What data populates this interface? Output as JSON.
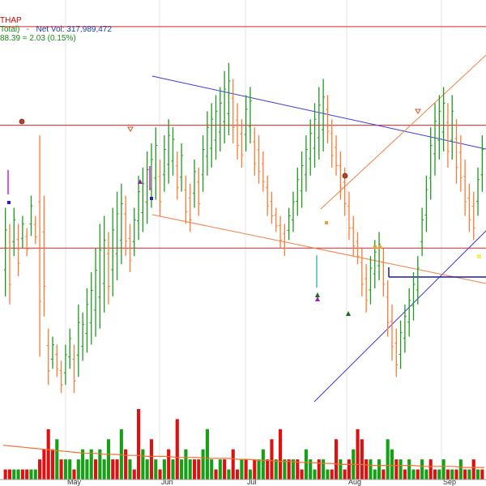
{
  "legend": {
    "symbol": "THAP",
    "line2_prefix": "Total)",
    "line2_sep": "-",
    "line2_label": "Net Vol:",
    "line2_value": "317,989,472",
    "line3": "88.39  =  2.03  (0.15%)"
  },
  "chart_data": {
    "type": "bar",
    "subtype": "ohlc-price-with-volume",
    "x_labels": [
      "May",
      "Jun",
      "Jul",
      "Aug",
      "Sep"
    ],
    "price_range": [
      0,
      100
    ],
    "colors": {
      "up": "#1f9a1f",
      "down": "#ff7a33",
      "resistance": "#e02020",
      "trend": "#3b3bd8",
      "channel": "#f08040",
      "volume_up": "#16a016",
      "volume_down": "#e01010",
      "volume_ma": "#f07030"
    },
    "horizontal_levels": [
      97,
      72.5,
      42
    ],
    "price_series": [
      [
        30,
        52
      ],
      [
        28,
        48
      ],
      [
        40,
        52
      ],
      [
        35,
        48
      ],
      [
        42,
        50
      ],
      [
        40,
        47
      ],
      [
        45,
        55
      ],
      [
        43,
        50
      ],
      [
        15,
        70
      ],
      [
        25,
        55
      ],
      [
        8,
        22
      ],
      [
        12,
        20
      ],
      [
        10,
        18
      ],
      [
        6,
        14
      ],
      [
        8,
        18
      ],
      [
        12,
        22
      ],
      [
        6,
        18
      ],
      [
        10,
        28
      ],
      [
        14,
        26
      ],
      [
        16,
        32
      ],
      [
        18,
        36
      ],
      [
        20,
        42
      ],
      [
        22,
        48
      ],
      [
        26,
        50
      ],
      [
        28,
        46
      ],
      [
        30,
        52
      ],
      [
        34,
        56
      ],
      [
        38,
        58
      ],
      [
        40,
        55
      ],
      [
        36,
        48
      ],
      [
        40,
        52
      ],
      [
        44,
        60
      ],
      [
        46,
        62
      ],
      [
        48,
        66
      ],
      [
        52,
        68
      ],
      [
        54,
        72
      ],
      [
        50,
        64
      ],
      [
        56,
        70
      ],
      [
        58,
        74
      ],
      [
        60,
        72
      ],
      [
        54,
        66
      ],
      [
        56,
        68
      ],
      [
        48,
        60
      ],
      [
        46,
        58
      ],
      [
        52,
        64
      ],
      [
        50,
        62
      ],
      [
        56,
        70
      ],
      [
        60,
        76
      ],
      [
        62,
        78
      ],
      [
        64,
        80
      ],
      [
        66,
        82
      ],
      [
        68,
        86
      ],
      [
        70,
        88
      ],
      [
        68,
        84
      ],
      [
        64,
        78
      ],
      [
        62,
        74
      ],
      [
        66,
        80
      ],
      [
        68,
        82
      ],
      [
        60,
        72
      ],
      [
        58,
        70
      ],
      [
        56,
        66
      ],
      [
        50,
        60
      ],
      [
        48,
        56
      ],
      [
        46,
        52
      ],
      [
        42,
        50
      ],
      [
        40,
        48
      ],
      [
        44,
        52
      ],
      [
        46,
        56
      ],
      [
        50,
        62
      ],
      [
        52,
        66
      ],
      [
        56,
        70
      ],
      [
        60,
        74
      ],
      [
        62,
        78
      ],
      [
        64,
        82
      ],
      [
        66,
        84
      ],
      [
        68,
        80
      ],
      [
        62,
        74
      ],
      [
        60,
        70
      ],
      [
        54,
        66
      ],
      [
        50,
        62
      ],
      [
        44,
        56
      ],
      [
        40,
        50
      ],
      [
        38,
        46
      ],
      [
        30,
        42
      ],
      [
        26,
        38
      ],
      [
        28,
        40
      ],
      [
        32,
        44
      ],
      [
        34,
        46
      ],
      [
        30,
        42
      ],
      [
        20,
        34
      ],
      [
        14,
        28
      ],
      [
        10,
        22
      ],
      [
        12,
        24
      ],
      [
        16,
        28
      ],
      [
        20,
        32
      ],
      [
        24,
        36
      ],
      [
        28,
        40
      ],
      [
        40,
        52
      ],
      [
        46,
        60
      ],
      [
        54,
        72
      ],
      [
        60,
        78
      ],
      [
        64,
        80
      ],
      [
        66,
        82
      ],
      [
        62,
        78
      ],
      [
        64,
        80
      ],
      [
        58,
        74
      ],
      [
        56,
        70
      ],
      [
        50,
        64
      ],
      [
        46,
        58
      ],
      [
        44,
        56
      ],
      [
        50,
        62
      ],
      [
        56,
        70
      ]
    ],
    "volume_series": [
      [
        0,
        1
      ],
      [
        0,
        1
      ],
      [
        1,
        1
      ],
      [
        1,
        1
      ],
      [
        0,
        1
      ],
      [
        0,
        1
      ],
      [
        1,
        1
      ],
      [
        1,
        1
      ],
      [
        0,
        2
      ],
      [
        0,
        3
      ],
      [
        0,
        5
      ],
      [
        0,
        3
      ],
      [
        1,
        4
      ],
      [
        0,
        2
      ],
      [
        1,
        2
      ],
      [
        1,
        2
      ],
      [
        0,
        1
      ],
      [
        1,
        2
      ],
      [
        1,
        3
      ],
      [
        1,
        2
      ],
      [
        1,
        3
      ],
      [
        0,
        2
      ],
      [
        1,
        3
      ],
      [
        1,
        2
      ],
      [
        1,
        4
      ],
      [
        0,
        2
      ],
      [
        0,
        2
      ],
      [
        1,
        5
      ],
      [
        0,
        3
      ],
      [
        1,
        2
      ],
      [
        0,
        1
      ],
      [
        0,
        7
      ],
      [
        1,
        3
      ],
      [
        1,
        2
      ],
      [
        0,
        4
      ],
      [
        1,
        2
      ],
      [
        0,
        1
      ],
      [
        1,
        2
      ],
      [
        0,
        3
      ],
      [
        1,
        2
      ],
      [
        0,
        6
      ],
      [
        1,
        2
      ],
      [
        1,
        3
      ],
      [
        1,
        2
      ],
      [
        0,
        2
      ],
      [
        0,
        2
      ],
      [
        1,
        3
      ],
      [
        1,
        5
      ],
      [
        1,
        2
      ],
      [
        0,
        1
      ],
      [
        1,
        2
      ],
      [
        0,
        2
      ],
      [
        1,
        1
      ],
      [
        0,
        3
      ],
      [
        0,
        1
      ],
      [
        1,
        2
      ],
      [
        0,
        2
      ],
      [
        1,
        1
      ],
      [
        0,
        2
      ],
      [
        1,
        2
      ],
      [
        1,
        3
      ],
      [
        0,
        2
      ],
      [
        0,
        4
      ],
      [
        1,
        2
      ],
      [
        0,
        5
      ],
      [
        1,
        2
      ],
      [
        0,
        2
      ],
      [
        1,
        2
      ],
      [
        0,
        2
      ],
      [
        0,
        1
      ],
      [
        1,
        3
      ],
      [
        1,
        2
      ],
      [
        1,
        1
      ],
      [
        0,
        2
      ],
      [
        1,
        2
      ],
      [
        1,
        1
      ],
      [
        0,
        1
      ],
      [
        0,
        4
      ],
      [
        1,
        2
      ],
      [
        0,
        1
      ],
      [
        0,
        2
      ],
      [
        1,
        3
      ],
      [
        0,
        5
      ],
      [
        0,
        4
      ],
      [
        0,
        2
      ],
      [
        1,
        2
      ],
      [
        1,
        1
      ],
      [
        1,
        2
      ],
      [
        0,
        1
      ],
      [
        1,
        4
      ],
      [
        1,
        3
      ],
      [
        0,
        2
      ],
      [
        1,
        2
      ],
      [
        0,
        1
      ],
      [
        1,
        2
      ],
      [
        1,
        1
      ],
      [
        0,
        1
      ],
      [
        1,
        2
      ],
      [
        1,
        1
      ],
      [
        0,
        2
      ],
      [
        0,
        1
      ],
      [
        1,
        1
      ],
      [
        1,
        2
      ],
      [
        0,
        1
      ],
      [
        1,
        1
      ],
      [
        0,
        1
      ],
      [
        1,
        2
      ],
      [
        0,
        1
      ],
      [
        1,
        1
      ],
      [
        0,
        2
      ],
      [
        1,
        1
      ],
      [
        0,
        1
      ]
    ],
    "volume_ma": [
      3.4,
      3.3,
      3.2,
      3.1,
      3.0,
      2.9,
      2.8,
      2.7,
      2.6,
      2.6,
      2.5,
      2.5,
      2.4,
      2.4,
      2.3,
      2.3,
      2.3,
      2.2,
      2.2,
      2.2,
      2.1,
      2.1,
      2.1,
      2.0,
      2.0,
      1.9,
      1.9,
      1.8,
      1.8,
      1.7,
      1.7,
      1.6,
      1.6,
      1.5,
      1.5,
      1.5,
      1.4,
      1.4,
      1.4,
      1.4,
      1.4,
      1.3,
      1.3,
      1.3,
      1.3,
      1.2,
      1.2,
      1.2
    ],
    "volume_max": 7
  }
}
